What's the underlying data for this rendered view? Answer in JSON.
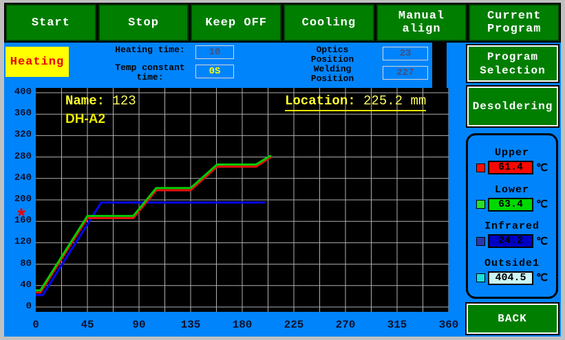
{
  "toolbar": {
    "buttons": [
      {
        "label": "Start"
      },
      {
        "label": "Stop"
      },
      {
        "label": "Keep OFF"
      },
      {
        "label": "Cooling"
      },
      {
        "label": "Manual align"
      },
      {
        "label": "Current Program"
      }
    ]
  },
  "status_badge": {
    "label": "Heating"
  },
  "params": {
    "heating_time": {
      "label": "Heating time:",
      "value": "10"
    },
    "temp_constant": {
      "label": "Temp constant time:",
      "value": "0S"
    },
    "optics_position": {
      "label": "Optics Position",
      "value": "23"
    },
    "welding_position": {
      "label": "Welding Position",
      "value": "227"
    }
  },
  "side_buttons": {
    "program_selection": "Program Selection",
    "desoldering": "Desoldering",
    "back": "BACK"
  },
  "sensors": [
    {
      "label": "Upper",
      "value": "61.4",
      "unit": "℃",
      "box_color": "#f80800",
      "swatch_color": "#f81000"
    },
    {
      "label": "Lower",
      "value": "63.4",
      "unit": "℃",
      "box_color": "#00d800",
      "swatch_color": "#28e028"
    },
    {
      "label": "Infrared",
      "value": "24.2",
      "unit": "℃",
      "box_color": "#0000c4",
      "swatch_color": "#2838b0"
    },
    {
      "label": "Outside1",
      "value": "404.5",
      "unit": "℃",
      "box_color": "#ccf6f6",
      "swatch_color": "#18e0e0"
    }
  ],
  "chart_data": {
    "type": "line",
    "title": "",
    "xlabel": "",
    "ylabel": "",
    "xlim": [
      0,
      360
    ],
    "ylim": [
      0,
      400
    ],
    "x_ticks": [
      0,
      45,
      90,
      135,
      180,
      225,
      270,
      315,
      360
    ],
    "y_ticks": [
      0,
      40,
      80,
      120,
      160,
      200,
      240,
      280,
      320,
      360,
      400
    ],
    "grid": true,
    "grid_minor_x_step": 22.5,
    "grid_color": "#b0b0b0",
    "plot_bg": "#000000",
    "annotations": {
      "name_label": "Name:",
      "name_value": "123",
      "program": "DH-A2",
      "location_label": "Location:",
      "location_value": "225.2 mm",
      "marker_symbol": "*",
      "marker_y_value": 172
    },
    "series": [
      {
        "name": "infrared",
        "color": "#0008f0",
        "points": [
          [
            0,
            22
          ],
          [
            6,
            22
          ],
          [
            57,
            195
          ],
          [
            200,
            195
          ]
        ]
      },
      {
        "name": "upper",
        "color": "#e81010",
        "points": [
          [
            0,
            27
          ],
          [
            4,
            27
          ],
          [
            45,
            166
          ],
          [
            85,
            166
          ],
          [
            105,
            218
          ],
          [
            135,
            218
          ],
          [
            158,
            262
          ],
          [
            192,
            262
          ],
          [
            205,
            280
          ]
        ]
      },
      {
        "name": "lower",
        "color": "#00cc00",
        "points": [
          [
            0,
            31
          ],
          [
            4,
            31
          ],
          [
            45,
            170
          ],
          [
            85,
            170
          ],
          [
            105,
            222
          ],
          [
            135,
            222
          ],
          [
            158,
            266
          ],
          [
            192,
            266
          ],
          [
            205,
            283
          ]
        ]
      }
    ]
  }
}
